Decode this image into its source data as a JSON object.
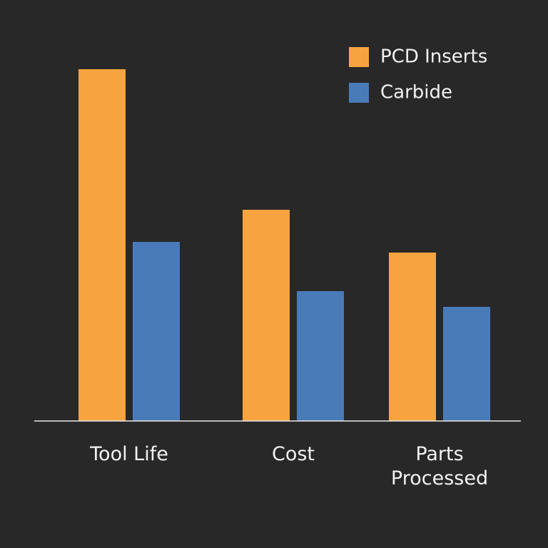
{
  "chart_data": {
    "type": "bar",
    "categories": [
      "Tool Life",
      "Cost",
      "Parts Processed"
    ],
    "series": [
      {
        "name": "PCD Inserts",
        "color": "#f7a440",
        "values": [
          493,
          296,
          236
        ]
      },
      {
        "name": "Carbide",
        "color": "#4a7bb9",
        "values": [
          251,
          182,
          160
        ]
      }
    ],
    "ylim": [
      0,
      500
    ]
  }
}
